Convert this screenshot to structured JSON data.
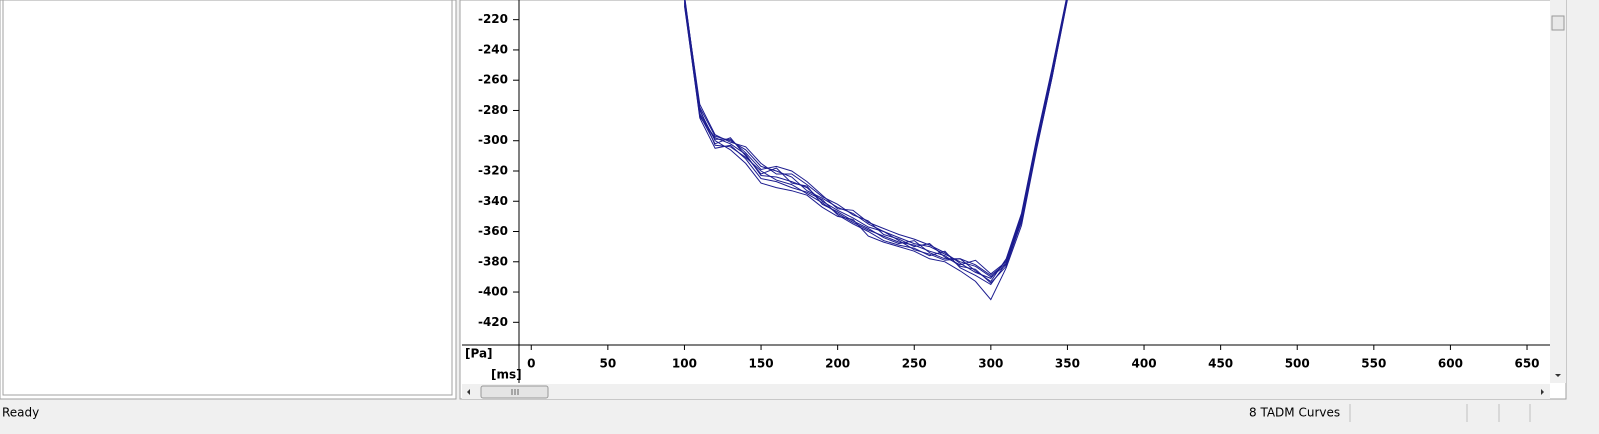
{
  "chart_data": {
    "type": "line",
    "y_label": "[Pa]",
    "x_label": "[ms]",
    "x": [
      100,
      110,
      120,
      130,
      140,
      150,
      160,
      170,
      180,
      190,
      200,
      210,
      220,
      230,
      240,
      250,
      260,
      270,
      280,
      290,
      300,
      310,
      320,
      330,
      340,
      350
    ],
    "series": [
      {
        "color": "#1c1c8f",
        "values": [
          -205,
          -278,
          -297,
          -300,
          -306,
          -317,
          -320,
          -324,
          -333,
          -338,
          -344,
          -348,
          -355,
          -360,
          -364,
          -368,
          -370,
          -375,
          -380,
          -383,
          -390,
          -382,
          -352,
          -300,
          -255,
          -205
        ]
      },
      {
        "color": "#1c1c8f",
        "values": [
          -208,
          -283,
          -302,
          -298,
          -310,
          -322,
          -318,
          -328,
          -330,
          -342,
          -347,
          -353,
          -358,
          -364,
          -368,
          -366,
          -374,
          -378,
          -378,
          -386,
          -393,
          -378,
          -348,
          -298,
          -252,
          -203
        ]
      },
      {
        "color": "#1c1c8f",
        "values": [
          -210,
          -285,
          -305,
          -303,
          -312,
          -325,
          -327,
          -331,
          -334,
          -339,
          -349,
          -355,
          -360,
          -366,
          -369,
          -371,
          -376,
          -373,
          -384,
          -389,
          -395,
          -381,
          -354,
          -303,
          -257,
          -206
        ]
      },
      {
        "color": "#1c1c8f",
        "values": [
          -206,
          -276,
          -296,
          -301,
          -304,
          -315,
          -322,
          -322,
          -329,
          -337,
          -342,
          -349,
          -353,
          -362,
          -365,
          -370,
          -368,
          -377,
          -382,
          -379,
          -388,
          -380,
          -350,
          -299,
          -254,
          -204
        ]
      },
      {
        "color": "#1c1c8f",
        "values": [
          -207,
          -280,
          -300,
          -306,
          -315,
          -328,
          -331,
          -333,
          -336,
          -344,
          -350,
          -352,
          -363,
          -367,
          -370,
          -373,
          -378,
          -380,
          -386,
          -393,
          -405,
          -384,
          -356,
          -305,
          -258,
          -207
        ]
      },
      {
        "color": "#1c1c8f",
        "values": [
          -209,
          -282,
          -299,
          -299,
          -308,
          -319,
          -317,
          -320,
          -327,
          -336,
          -345,
          -346,
          -354,
          -358,
          -362,
          -365,
          -369,
          -374,
          -381,
          -387,
          -391,
          -379,
          -349,
          -301,
          -253,
          -204
        ]
      },
      {
        "color": "#1c1c8f",
        "values": [
          -204,
          -279,
          -303,
          -304,
          -311,
          -320,
          -326,
          -329,
          -335,
          -341,
          -348,
          -354,
          -359,
          -363,
          -367,
          -369,
          -373,
          -376,
          -383,
          -385,
          -394,
          -383,
          -353,
          -302,
          -256,
          -205
        ]
      },
      {
        "color": "#1c1c8f",
        "values": [
          -211,
          -284,
          -298,
          -302,
          -309,
          -323,
          -324,
          -327,
          -331,
          -340,
          -346,
          -351,
          -357,
          -360,
          -366,
          -372,
          -375,
          -379,
          -378,
          -382,
          -389,
          -381,
          -351,
          -304,
          -258,
          -206
        ]
      }
    ],
    "xlim": [
      -8,
      665
    ],
    "ylim": [
      -435,
      -207
    ],
    "xticks": [
      0,
      50,
      100,
      150,
      200,
      250,
      300,
      350,
      400,
      450,
      500,
      550,
      600,
      650
    ],
    "yticks": [
      -220,
      -240,
      -260,
      -280,
      -300,
      -320,
      -340,
      -360,
      -380,
      -400,
      -420
    ]
  },
  "status_bar": {
    "left": "Ready",
    "right": "8 TADM Curves"
  }
}
